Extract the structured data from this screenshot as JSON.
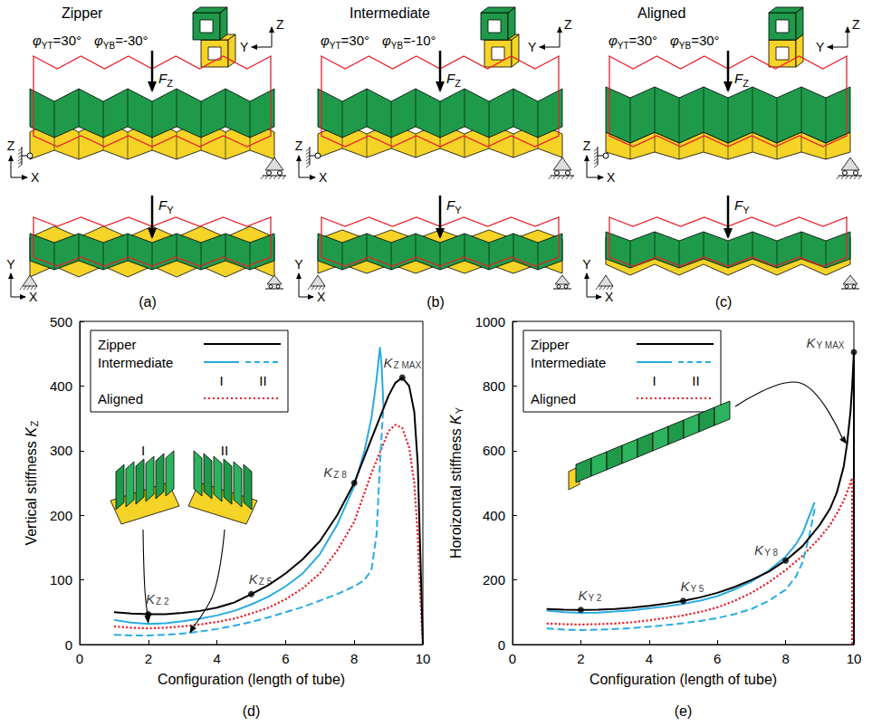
{
  "diagrams": [
    {
      "label": "(a)",
      "title": "Zipper",
      "angles": [
        {
          "symbol": "φ",
          "sub": "YT",
          "value": "=30°"
        },
        {
          "symbol": "φ",
          "sub": "YB",
          "value": "=-30°"
        }
      ],
      "view_axes": [
        "Z",
        "Y"
      ],
      "elevation": {
        "axes": [
          "Z",
          "X"
        ],
        "force": {
          "symbol": "F",
          "sub": "Z"
        }
      },
      "plan": {
        "axes": [
          "Y",
          "X"
        ],
        "force": {
          "symbol": "F",
          "sub": "Y"
        }
      }
    },
    {
      "label": "(b)",
      "title": "Intermediate",
      "angles": [
        {
          "symbol": "φ",
          "sub": "YT",
          "value": "=30°"
        },
        {
          "symbol": "φ",
          "sub": "YB",
          "value": "=-10°"
        }
      ],
      "view_axes": [
        "Z",
        "Y"
      ],
      "elevation": {
        "axes": [
          "Z",
          "X"
        ],
        "force": {
          "symbol": "F",
          "sub": "Z"
        }
      },
      "plan": {
        "axes": [
          "Y",
          "X"
        ],
        "force": {
          "symbol": "F",
          "sub": "Y"
        }
      }
    },
    {
      "label": "(c)",
      "title": "Aligned",
      "angles": [
        {
          "symbol": "φ",
          "sub": "YT",
          "value": "=30°"
        },
        {
          "symbol": "φ",
          "sub": "YB",
          "value": "=30°"
        }
      ],
      "view_axes": [
        "Z",
        "Y"
      ],
      "elevation": {
        "axes": [
          "Z",
          "X"
        ],
        "force": {
          "symbol": "F",
          "sub": "Z"
        }
      },
      "plan": {
        "axes": [
          "Y",
          "X"
        ],
        "force": {
          "symbol": "F",
          "sub": "Y"
        }
      }
    }
  ],
  "chart_data": [
    {
      "type": "line",
      "label": "(d)",
      "xlabel": "Configuration (length of tube)",
      "ylabel": {
        "text": "Vertical stiffness ",
        "symbol": "K",
        "sub": "Z"
      },
      "xlim": [
        0,
        10
      ],
      "xticks": [
        0,
        2,
        4,
        6,
        8,
        10
      ],
      "ylim": [
        0,
        500
      ],
      "yticks": [
        0,
        100,
        200,
        300,
        400,
        500
      ],
      "grid": false,
      "legend": "upper left",
      "series": [
        {
          "name": "Zipper",
          "color": "#000000",
          "line_style": "solid",
          "x": [
            1,
            1.5,
            2,
            2.5,
            3,
            3.5,
            4,
            4.5,
            5,
            5.5,
            6,
            6.5,
            7,
            7.5,
            8,
            8.5,
            9,
            9.2,
            9.4,
            9.6,
            9.75,
            9.85,
            9.92,
            10
          ],
          "values": [
            50,
            48,
            47,
            47,
            49,
            52,
            57,
            65,
            78,
            92,
            110,
            132,
            160,
            200,
            250,
            318,
            385,
            405,
            413,
            400,
            360,
            280,
            150,
            0
          ]
        },
        {
          "name": "Intermediate",
          "part": "I",
          "color": "#29abe2",
          "line_style": "solid",
          "x": [
            1,
            1.5,
            2,
            2.5,
            3,
            3.5,
            4,
            4.5,
            5,
            5.5,
            6,
            6.5,
            7,
            7.5,
            8,
            8.3,
            8.5,
            8.65,
            8.75,
            8.8,
            8.85
          ],
          "values": [
            38,
            34,
            32,
            33,
            36,
            40,
            45,
            52,
            62,
            74,
            90,
            110,
            140,
            185,
            245,
            300,
            350,
            410,
            460,
            430,
            370
          ]
        },
        {
          "name": "Intermediate",
          "part": "II",
          "color": "#29abe2",
          "line_style": "dashed",
          "x": [
            1,
            1.5,
            2,
            2.5,
            3,
            3.5,
            4,
            4.5,
            5,
            5.5,
            6,
            6.5,
            7,
            7.5,
            8,
            8.3,
            8.5,
            8.65,
            8.75,
            8.85
          ],
          "values": [
            15,
            14,
            14,
            15,
            17,
            20,
            24,
            29,
            35,
            42,
            50,
            58,
            68,
            78,
            90,
            100,
            115,
            170,
            280,
            370
          ]
        },
        {
          "name": "Aligned",
          "color": "#e8202a",
          "line_style": "dotted",
          "x": [
            1,
            1.5,
            2,
            2.5,
            3,
            3.5,
            4,
            4.5,
            5,
            5.5,
            6,
            6.5,
            7,
            7.5,
            8,
            8.5,
            9,
            9.2,
            9.4,
            9.6,
            9.75,
            9.85,
            9.92,
            10
          ],
          "values": [
            28,
            26,
            25,
            26,
            28,
            31,
            35,
            40,
            48,
            57,
            70,
            87,
            110,
            145,
            190,
            265,
            330,
            340,
            335,
            305,
            250,
            170,
            80,
            0
          ]
        }
      ],
      "annotations": [
        {
          "symbol": "K",
          "sub": "Z 2",
          "x": 2,
          "y": 47
        },
        {
          "symbol": "K",
          "sub": "Z 5",
          "x": 5,
          "y": 78
        },
        {
          "symbol": "K",
          "sub": "Z 8",
          "x": 8,
          "y": 250
        },
        {
          "symbol": "K",
          "sub": "Z MAX",
          "x": 9.4,
          "y": 413
        }
      ],
      "insets": [
        {
          "label": "I",
          "points_to": {
            "x": 2,
            "y": 32
          }
        },
        {
          "label": "II",
          "points_to": {
            "x": 3.2,
            "y": 17
          }
        }
      ]
    },
    {
      "type": "line",
      "label": "(e)",
      "xlabel": "Configuration (length of tube)",
      "ylabel": {
        "text": "Horoizontal stiffness ",
        "symbol": "K",
        "sub": "Y"
      },
      "xlim": [
        0,
        10
      ],
      "xticks": [
        0,
        2,
        4,
        6,
        8,
        10
      ],
      "ylim": [
        0,
        1000
      ],
      "yticks": [
        0,
        200,
        400,
        600,
        800,
        1000
      ],
      "grid": false,
      "legend": "upper left",
      "series": [
        {
          "name": "Zipper",
          "color": "#000000",
          "line_style": "solid",
          "x": [
            1,
            1.5,
            2,
            2.5,
            3,
            3.5,
            4,
            4.5,
            5,
            5.5,
            6,
            6.5,
            7,
            7.5,
            8,
            8.5,
            9,
            9.3,
            9.5,
            9.7,
            9.8,
            9.9,
            9.95,
            10,
            10
          ],
          "values": [
            110,
            108,
            107,
            108,
            110,
            114,
            120,
            127,
            135,
            146,
            160,
            178,
            200,
            225,
            260,
            305,
            370,
            420,
            470,
            550,
            620,
            720,
            800,
            905,
            0
          ]
        },
        {
          "name": "Intermediate",
          "part": "I",
          "color": "#29abe2",
          "line_style": "solid",
          "x": [
            1,
            1.5,
            2,
            2.5,
            3,
            3.5,
            4,
            4.5,
            5,
            5.5,
            6,
            6.5,
            7,
            7.5,
            8,
            8.3,
            8.5,
            8.7,
            8.85
          ],
          "values": [
            105,
            100,
            98,
            99,
            102,
            106,
            112,
            118,
            126,
            136,
            150,
            170,
            195,
            228,
            272,
            310,
            345,
            400,
            440
          ]
        },
        {
          "name": "Intermediate",
          "part": "II",
          "color": "#29abe2",
          "line_style": "dashed",
          "x": [
            1,
            1.5,
            2,
            2.5,
            3,
            3.5,
            4,
            4.5,
            5,
            5.5,
            6,
            6.5,
            7,
            7.5,
            8,
            8.3,
            8.5,
            8.7,
            8.85
          ],
          "values": [
            50,
            46,
            45,
            46,
            48,
            51,
            55,
            60,
            66,
            73,
            82,
            94,
            110,
            135,
            170,
            210,
            255,
            340,
            420
          ]
        },
        {
          "name": "Aligned",
          "color": "#e8202a",
          "line_style": "dotted",
          "x": [
            1,
            1.5,
            2,
            2.5,
            3,
            3.5,
            4,
            4.5,
            5,
            5.5,
            6,
            6.5,
            7,
            7.5,
            8,
            8.5,
            9,
            9.3,
            9.5,
            9.7,
            9.85,
            9.95,
            9.95
          ],
          "values": [
            65,
            63,
            62,
            63,
            65,
            69,
            75,
            82,
            90,
            101,
            115,
            135,
            160,
            192,
            230,
            275,
            330,
            370,
            405,
            445,
            485,
            515,
            0
          ]
        }
      ],
      "annotations": [
        {
          "symbol": "K",
          "sub": "Y 2",
          "x": 2,
          "y": 107
        },
        {
          "symbol": "K",
          "sub": "Y 5",
          "x": 5,
          "y": 135
        },
        {
          "symbol": "K",
          "sub": "Y 8",
          "x": 8,
          "y": 260
        },
        {
          "symbol": "K",
          "sub": "Y MAX",
          "x": 10,
          "y": 905
        }
      ],
      "insets": [
        {
          "points_to": {
            "x": 9.8,
            "y": 620
          }
        }
      ]
    }
  ]
}
